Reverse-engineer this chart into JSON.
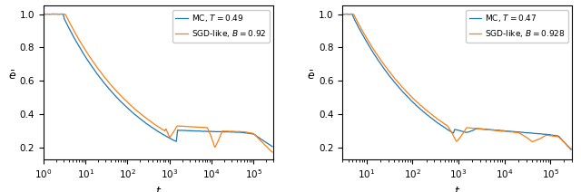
{
  "plot1": {
    "mc_label": "MC, $T = 0.49$",
    "sgd_label": "SGD-like, $B = 0.92$",
    "mc_color": "#1f77b4",
    "sgd_color": "#ff7f0e",
    "ylabel": "$\\bar{e}$",
    "xlabel": "$t$",
    "ylim": [
      0.13,
      1.05
    ],
    "yticks": [
      0.2,
      0.4,
      0.6,
      0.8,
      1.0
    ],
    "xlim_left": 1.0,
    "xlim_right": 300000
  },
  "plot2": {
    "mc_label": "MC, $T = 0.47$",
    "sgd_label": "SGD-like, $B = 0.928$",
    "mc_color": "#1f77b4",
    "sgd_color": "#ff7f0e",
    "ylabel": "$\\bar{e}$",
    "xlabel": "$t$",
    "ylim": [
      0.13,
      1.05
    ],
    "yticks": [
      0.2,
      0.4,
      0.6,
      0.8,
      1.0
    ],
    "xlim_left": 3.0,
    "xlim_right": 300000
  }
}
